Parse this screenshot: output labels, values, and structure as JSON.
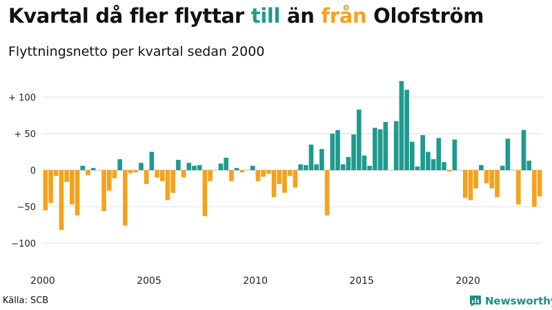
{
  "header": {
    "title_parts": [
      {
        "text": "Kvartal då fler flyttar ",
        "role": "plain"
      },
      {
        "text": "till",
        "role": "positive"
      },
      {
        "text": " än ",
        "role": "plain"
      },
      {
        "text": "från",
        "role": "negative"
      },
      {
        "text": " Olofström",
        "role": "plain"
      }
    ],
    "subtitle": "Flyttningsnetto per kvartal sedan 2000"
  },
  "colors": {
    "positive": "#1e9a8f",
    "negative": "#f5a21c",
    "text": "#111111",
    "grid": "#dddddd"
  },
  "footer": {
    "source": "Källa: SCB",
    "brand": "Newsworthy",
    "brand_icon": "newsworthy-chart-logo-icon"
  },
  "chart_data": {
    "type": "bar",
    "title": "",
    "xlabel": "",
    "ylabel": "",
    "ylim": [
      -130,
      130
    ],
    "y_ticks": [
      {
        "value": 100,
        "label": "+ 100"
      },
      {
        "value": 50,
        "label": "+  50"
      },
      {
        "value": 0,
        "label": "0"
      },
      {
        "value": -50,
        "label": "−50"
      },
      {
        "value": -100,
        "label": "−100"
      }
    ],
    "x_ticks": [
      "2000",
      "2005",
      "2010",
      "2015",
      "2020"
    ],
    "grid": true,
    "legend": "none",
    "categories": [
      "2000 Q1",
      "2000 Q2",
      "2000 Q3",
      "2000 Q4",
      "2001 Q1",
      "2001 Q2",
      "2001 Q3",
      "2001 Q4",
      "2002 Q1",
      "2002 Q2",
      "2002 Q3",
      "2002 Q4",
      "2003 Q1",
      "2003 Q2",
      "2003 Q3",
      "2003 Q4",
      "2004 Q1",
      "2004 Q2",
      "2004 Q3",
      "2004 Q4",
      "2005 Q1",
      "2005 Q2",
      "2005 Q3",
      "2005 Q4",
      "2006 Q1",
      "2006 Q2",
      "2006 Q3",
      "2006 Q4",
      "2007 Q1",
      "2007 Q2",
      "2007 Q3",
      "2007 Q4",
      "2008 Q1",
      "2008 Q2",
      "2008 Q3",
      "2008 Q4",
      "2009 Q1",
      "2009 Q2",
      "2009 Q3",
      "2009 Q4",
      "2010 Q1",
      "2010 Q2",
      "2010 Q3",
      "2010 Q4",
      "2011 Q1",
      "2011 Q2",
      "2011 Q3",
      "2011 Q4",
      "2012 Q1",
      "2012 Q2",
      "2012 Q3",
      "2012 Q4",
      "2013 Q1",
      "2013 Q2",
      "2013 Q3",
      "2013 Q4",
      "2014 Q1",
      "2014 Q2",
      "2014 Q3",
      "2014 Q4",
      "2015 Q1",
      "2015 Q2",
      "2015 Q3",
      "2015 Q4",
      "2016 Q1",
      "2016 Q2",
      "2016 Q3",
      "2016 Q4",
      "2017 Q1",
      "2017 Q2",
      "2017 Q3",
      "2017 Q4",
      "2018 Q1",
      "2018 Q2",
      "2018 Q3",
      "2018 Q4",
      "2019 Q1",
      "2019 Q2",
      "2019 Q3",
      "2019 Q4",
      "2020 Q1",
      "2020 Q2",
      "2020 Q3",
      "2020 Q4",
      "2021 Q1",
      "2021 Q2",
      "2021 Q3",
      "2021 Q4",
      "2022 Q1",
      "2022 Q2",
      "2022 Q3",
      "2022 Q4",
      "2023 Q1",
      "2023 Q2"
    ],
    "values": [
      -55,
      -45,
      -8,
      -82,
      -16,
      -47,
      -62,
      6,
      -7,
      3,
      0,
      -56,
      -28,
      -11,
      15,
      -76,
      -4,
      -3,
      10,
      -19,
      25,
      -10,
      -15,
      -41,
      -31,
      14,
      -10,
      10,
      6,
      7,
      -63,
      -15,
      0,
      9,
      17,
      -15,
      3,
      -3,
      0,
      6,
      -15,
      -9,
      -5,
      -37,
      -19,
      -31,
      -8,
      -24,
      8,
      7,
      35,
      8,
      29,
      -62,
      50,
      55,
      8,
      18,
      49,
      83,
      20,
      6,
      58,
      56,
      66,
      0,
      67,
      122,
      110,
      39,
      5,
      48,
      25,
      15,
      44,
      11,
      -2,
      42,
      0,
      -38,
      -41,
      -25,
      7,
      -18,
      -25,
      -37,
      6,
      43,
      0,
      -47,
      55,
      13,
      -50,
      -36
    ]
  }
}
